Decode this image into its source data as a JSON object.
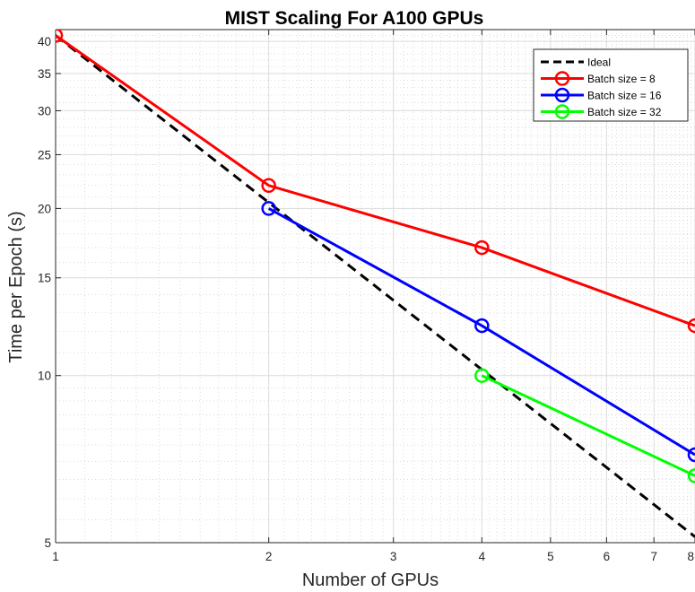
{
  "chart_data": {
    "type": "line",
    "title": "MIST Scaling For A100 GPUs",
    "xlabel": "Number of GPUs",
    "ylabel": "Time per Epoch (s)",
    "xscale": "log",
    "yscale": "log",
    "xlim": [
      1,
      8
    ],
    "ylim": [
      5,
      42
    ],
    "grid": true,
    "minor_grid": true,
    "legend_position": "top-right",
    "x_ticks": [
      1,
      2,
      3,
      4,
      5,
      6,
      7,
      8
    ],
    "x_tick_labels": [
      "1",
      "2",
      "3",
      "4",
      "5",
      "6",
      "7",
      "8"
    ],
    "y_ticks": [
      5,
      10,
      15,
      20,
      25,
      30,
      35,
      40
    ],
    "y_tick_labels": [
      "5",
      "10",
      "15",
      "20",
      "25",
      "30",
      "35",
      "40"
    ],
    "series": [
      {
        "name": "Ideal",
        "color": "#000000",
        "dashed": true,
        "marker": false,
        "x": [
          1,
          8
        ],
        "y": [
          41,
          5.125
        ]
      },
      {
        "name": "Batch size = 8",
        "color": "#ff0000",
        "dashed": false,
        "marker": true,
        "x": [
          1,
          2,
          4,
          8
        ],
        "y": [
          41,
          22,
          17,
          12.3
        ]
      },
      {
        "name": "Batch size = 16",
        "color": "#0000ff",
        "dashed": false,
        "marker": true,
        "x": [
          2,
          4,
          8
        ],
        "y": [
          20,
          12.3,
          7.2
        ]
      },
      {
        "name": "Batch size = 32",
        "color": "#00ff00",
        "dashed": false,
        "marker": true,
        "x": [
          4,
          8
        ],
        "y": [
          10,
          6.6
        ]
      }
    ]
  }
}
